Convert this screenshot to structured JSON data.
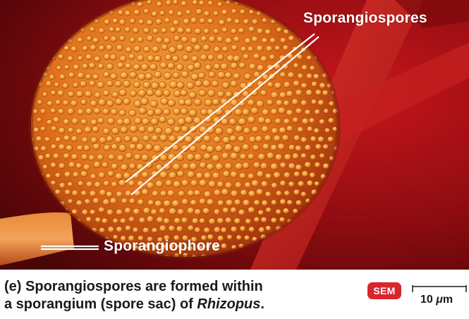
{
  "image": {
    "labels": {
      "sporangiospores": "Sporangiospores",
      "sporangiophore": "Sporangiophore"
    },
    "colors": {
      "background_dark": "#5a0608",
      "background_red": "#b8141a",
      "sporangium_orange": "#e57a1c",
      "spore_highlight": "#ffc45a",
      "label_white": "#ffffff"
    }
  },
  "caption": {
    "part": "(e)",
    "text": "Sporangiospores are formed within",
    "line2_text": "a sporangium (spore sac) of",
    "genus": "Rhizopus",
    "end": "."
  },
  "badge": {
    "label": "SEM",
    "color": "#d9262c"
  },
  "scale": {
    "value": "10",
    "unit_symbol": "μ",
    "unit_suffix": "m"
  }
}
